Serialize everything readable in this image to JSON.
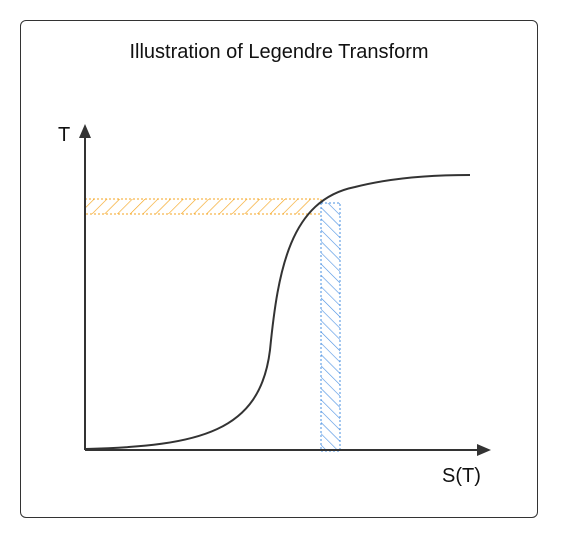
{
  "title": "Illustration of Legendre Transform",
  "axes": {
    "y_label": "T",
    "x_label": "S(T)"
  },
  "colors": {
    "axis": "#333333",
    "curve": "#333333",
    "horizontal_hatch": "#f5a623",
    "vertical_hatch": "#4a90e2"
  }
}
